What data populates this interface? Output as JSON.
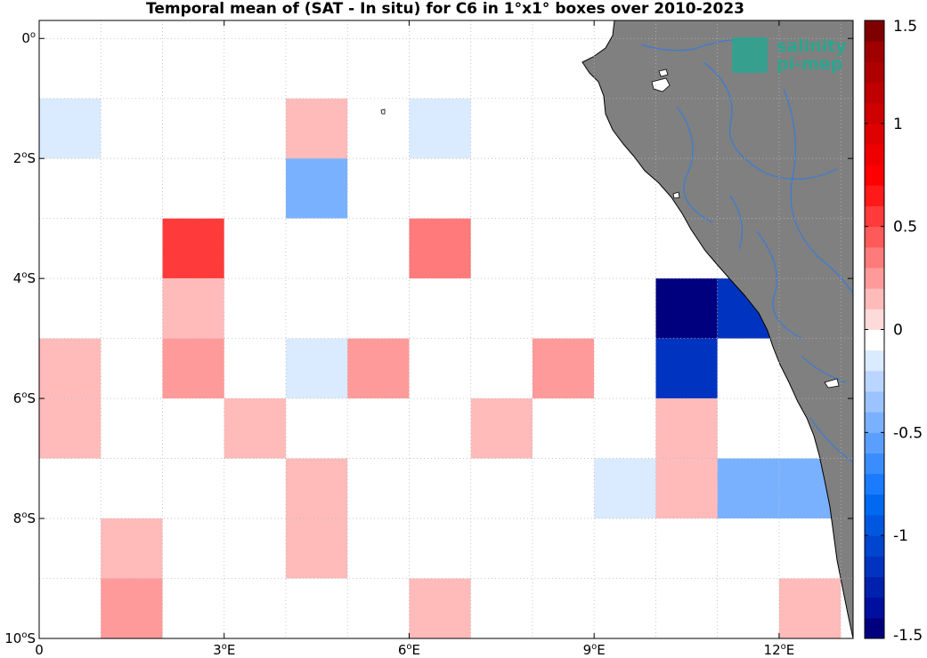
{
  "chart_data": {
    "type": "heatmap",
    "title": "Temporal mean of (SAT - In situ) for C6 in 1°x1° boxes over 2010-2023",
    "x_ticks": [
      {
        "deg": 0,
        "main": "0",
        "sup": "",
        "suf": ""
      },
      {
        "deg": 3,
        "main": "3",
        "sup": "o",
        "suf": "E"
      },
      {
        "deg": 6,
        "main": "6",
        "sup": "o",
        "suf": "E"
      },
      {
        "deg": 9,
        "main": "9",
        "sup": "o",
        "suf": "E"
      },
      {
        "deg": 12,
        "main": "12",
        "sup": "o",
        "suf": "E"
      }
    ],
    "y_ticks": [
      {
        "deg": 0,
        "main": "0",
        "sup": "o",
        "suf": ""
      },
      {
        "deg": -2,
        "main": "2",
        "sup": "o",
        "suf": "S"
      },
      {
        "deg": -4,
        "main": "4",
        "sup": "o",
        "suf": "S"
      },
      {
        "deg": -6,
        "main": "6",
        "sup": "o",
        "suf": "S"
      },
      {
        "deg": -8,
        "main": "8",
        "sup": "o",
        "suf": "S"
      },
      {
        "deg": -10,
        "main": "10",
        "sup": "o",
        "suf": "S"
      }
    ],
    "lon_range": [
      0,
      13.2
    ],
    "lat_range": [
      -10,
      0.3
    ],
    "grid": true,
    "colorbar": {
      "min": -1.5,
      "max": 1.5,
      "ticks": [
        {
          "value": 1.5,
          "label": "1.5"
        },
        {
          "value": 1,
          "label": "1"
        },
        {
          "value": 0.5,
          "label": "0.5"
        },
        {
          "value": 0,
          "label": "0"
        },
        {
          "value": -0.5,
          "label": "-0.5"
        },
        {
          "value": -1,
          "label": "-1"
        },
        {
          "value": -1.5,
          "label": "-1.5"
        }
      ]
    },
    "cells": [
      {
        "lon": 4.5,
        "lat": -0.5,
        "value": -0.08
      },
      {
        "lon": 5.5,
        "lat": -0.5,
        "value": -0.08
      },
      {
        "lon": 6.5,
        "lat": -0.5,
        "value": -0.08
      },
      {
        "lon": 0.5,
        "lat": -1.5,
        "value": -0.2
      },
      {
        "lon": 4.5,
        "lat": -1.5,
        "value": 0.1
      },
      {
        "lon": 6.5,
        "lat": -1.5,
        "value": -0.2
      },
      {
        "lon": 4.5,
        "lat": -2.5,
        "value": -0.45
      },
      {
        "lon": 0.5,
        "lat": -3.5,
        "value": -0.08
      },
      {
        "lon": 2.5,
        "lat": -3.5,
        "value": 0.55
      },
      {
        "lon": 4.5,
        "lat": -3.5,
        "value": -0.08
      },
      {
        "lon": 6.5,
        "lat": -3.5,
        "value": 0.3
      },
      {
        "lon": 10.5,
        "lat": -4.5,
        "value": -1.5
      },
      {
        "lon": 11.5,
        "lat": -4.5,
        "value": -1.15
      },
      {
        "lon": 2.5,
        "lat": -4.5,
        "value": 0.1
      },
      {
        "lon": 0.5,
        "lat": -5.5,
        "value": 0.1
      },
      {
        "lon": 2.5,
        "lat": -5.5,
        "value": 0.2
      },
      {
        "lon": 4.5,
        "lat": -5.5,
        "value": -0.2
      },
      {
        "lon": 5.5,
        "lat": -5.5,
        "value": 0.2
      },
      {
        "lon": 7.5,
        "lat": -5.5,
        "value": -0.08
      },
      {
        "lon": 8.5,
        "lat": -5.5,
        "value": 0.2
      },
      {
        "lon": 9.5,
        "lat": -5.5,
        "value": -0.08
      },
      {
        "lon": 10.5,
        "lat": -5.5,
        "value": -1.15
      },
      {
        "lon": 0.5,
        "lat": -6.5,
        "value": 0.1
      },
      {
        "lon": 3.5,
        "lat": -6.5,
        "value": 0.1
      },
      {
        "lon": 7.5,
        "lat": -6.5,
        "value": 0.1
      },
      {
        "lon": 10.5,
        "lat": -6.5,
        "value": 0.1
      },
      {
        "lon": 4.5,
        "lat": -7.5,
        "value": 0.1
      },
      {
        "lon": 8.5,
        "lat": -7.5,
        "value": -0.08
      },
      {
        "lon": 9.5,
        "lat": -7.5,
        "value": -0.2
      },
      {
        "lon": 10.5,
        "lat": -7.5,
        "value": 0.1
      },
      {
        "lon": 11.5,
        "lat": -7.5,
        "value": -0.45
      },
      {
        "lon": 12.5,
        "lat": -7.5,
        "value": -0.45
      },
      {
        "lon": 1.5,
        "lat": -8.5,
        "value": 0.1
      },
      {
        "lon": 4.5,
        "lat": -8.5,
        "value": 0.1
      },
      {
        "lon": 6.5,
        "lat": -8.5,
        "value": -0.08
      },
      {
        "lon": 7.5,
        "lat": -8.5,
        "value": -0.08
      },
      {
        "lon": 9.5,
        "lat": -8.5,
        "value": -0.08
      },
      {
        "lon": 1.5,
        "lat": -9.5,
        "value": 0.2
      },
      {
        "lon": 6.5,
        "lat": -9.5,
        "value": 0.1
      },
      {
        "lon": 7.5,
        "lat": -9.5,
        "value": -0.08
      },
      {
        "lon": 9.5,
        "lat": -9.5,
        "value": -0.08
      },
      {
        "lon": 10.5,
        "lat": -9.5,
        "value": -0.08
      },
      {
        "lon": 12.5,
        "lat": -9.5,
        "value": 0.1
      }
    ]
  },
  "logo": {
    "line1": "salinity",
    "line2": "pi-mep"
  },
  "colors": {
    "land": "#808080",
    "river": "#3a7bd5",
    "grid": "#b8b8b8",
    "logo": "#2aa58f",
    "colormap": [
      "#00007f",
      "#000f9e",
      "#0021ad",
      "#0033bf",
      "#0045cf",
      "#0057df",
      "#0069ef",
      "#1a7bff",
      "#3a8dff",
      "#5a9fff",
      "#7ab1ff",
      "#9ac3ff",
      "#bad5ff",
      "#daeaff",
      "#ffffff",
      "#ffdada",
      "#ffbaba",
      "#ff9a9a",
      "#ff7a7a",
      "#ff5a5a",
      "#ff3a3a",
      "#ff1a1a",
      "#ff0000",
      "#ef0000",
      "#df0000",
      "#cf0000",
      "#bf0000",
      "#af0000",
      "#9f0000",
      "#7f0000"
    ]
  }
}
